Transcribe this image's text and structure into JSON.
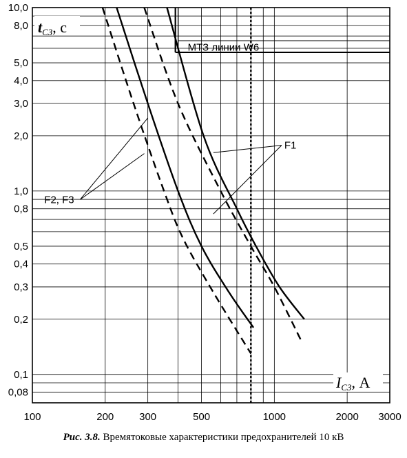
{
  "chart_data": {
    "type": "line",
    "title": "",
    "xscale": "log",
    "yscale": "log",
    "xlim": [
      100,
      3000
    ],
    "ylim": [
      0.07,
      10
    ],
    "xgrid": [
      100,
      200,
      300,
      400,
      500,
      600,
      700,
      800,
      900,
      1000,
      2000,
      3000
    ],
    "ygrid": [
      0.08,
      0.09,
      0.1,
      0.2,
      0.3,
      0.4,
      0.5,
      0.6,
      0.7,
      0.8,
      0.9,
      1.0,
      2.0,
      3.0,
      4.0,
      5.0,
      6.0,
      7.0,
      8.0,
      9.0,
      10.0
    ],
    "xticks": [
      {
        "v": 100,
        "label": "100"
      },
      {
        "v": 200,
        "label": "200"
      },
      {
        "v": 300,
        "label": "300"
      },
      {
        "v": 500,
        "label": "500"
      },
      {
        "v": 1000,
        "label": "1000"
      },
      {
        "v": 2000,
        "label": "2000"
      },
      {
        "v": 3000,
        "label": "3000"
      }
    ],
    "yticks": [
      {
        "v": 10,
        "label": "10,0"
      },
      {
        "v": 8,
        "label": "8,0"
      },
      {
        "v": 5,
        "label": "5,0"
      },
      {
        "v": 4,
        "label": "4,0"
      },
      {
        "v": 3,
        "label": "3,0"
      },
      {
        "v": 2,
        "label": "2,0"
      },
      {
        "v": 1,
        "label": "1,0"
      },
      {
        "v": 0.8,
        "label": "0,8"
      },
      {
        "v": 0.5,
        "label": "0,5"
      },
      {
        "v": 0.4,
        "label": "0,4"
      },
      {
        "v": 0.3,
        "label": "0,3"
      },
      {
        "v": 0.2,
        "label": "0,2"
      },
      {
        "v": 0.1,
        "label": "0,1"
      },
      {
        "v": 0.08,
        "label": "0,08"
      }
    ],
    "ylabel": {
      "symbol": "t",
      "sub": "СЗ",
      "unit": ", с"
    },
    "xlabel": {
      "symbol": "I",
      "sub": "СЗ",
      "unit": ", А"
    },
    "series": [
      {
        "style": "solid",
        "points": [
          [
            223,
            10
          ],
          [
            300,
            3.0
          ],
          [
            400,
            1.0
          ],
          [
            500,
            0.5
          ],
          [
            650,
            0.28
          ],
          [
            820,
            0.18
          ]
        ]
      },
      {
        "style": "dashed",
        "points": [
          [
            195,
            10
          ],
          [
            262,
            3.0
          ],
          [
            350,
            1.0
          ],
          [
            420,
            0.55
          ],
          [
            560,
            0.28
          ],
          [
            800,
            0.13
          ]
        ]
      },
      {
        "style": "solid",
        "points": [
          [
            360,
            10
          ],
          [
            510,
            2.0
          ],
          [
            700,
            0.8
          ],
          [
            840,
            0.5
          ],
          [
            1050,
            0.3
          ],
          [
            1330,
            0.2
          ]
        ]
      },
      {
        "style": "dashed",
        "points": [
          [
            290,
            10
          ],
          [
            400,
            3.0
          ],
          [
            600,
            1.0
          ],
          [
            800,
            0.5
          ],
          [
            1000,
            0.3
          ],
          [
            1300,
            0.15
          ]
        ]
      }
    ],
    "vline": {
      "x": 800,
      "style": "dotted"
    },
    "mtz_box": {
      "label": "МТЗ линии W6",
      "x_start": 390,
      "y_top": 10,
      "y_label_line": 6.6,
      "y_bottom": 5.7
    },
    "annotations": [
      {
        "label": "F1",
        "x": 1100,
        "y": 1.7,
        "arrows_to": [
          [
            560,
            1.62
          ],
          [
            560,
            0.75
          ]
        ]
      },
      {
        "label": "F2, F3",
        "x": 112,
        "y": 0.86,
        "arrows_to": [
          [
            300,
            2.5
          ],
          [
            290,
            1.6
          ]
        ]
      }
    ]
  },
  "caption": {
    "number": "Рис. 3.8.",
    "text": " Времятоковые характеристики предохранителей 10 кВ"
  }
}
